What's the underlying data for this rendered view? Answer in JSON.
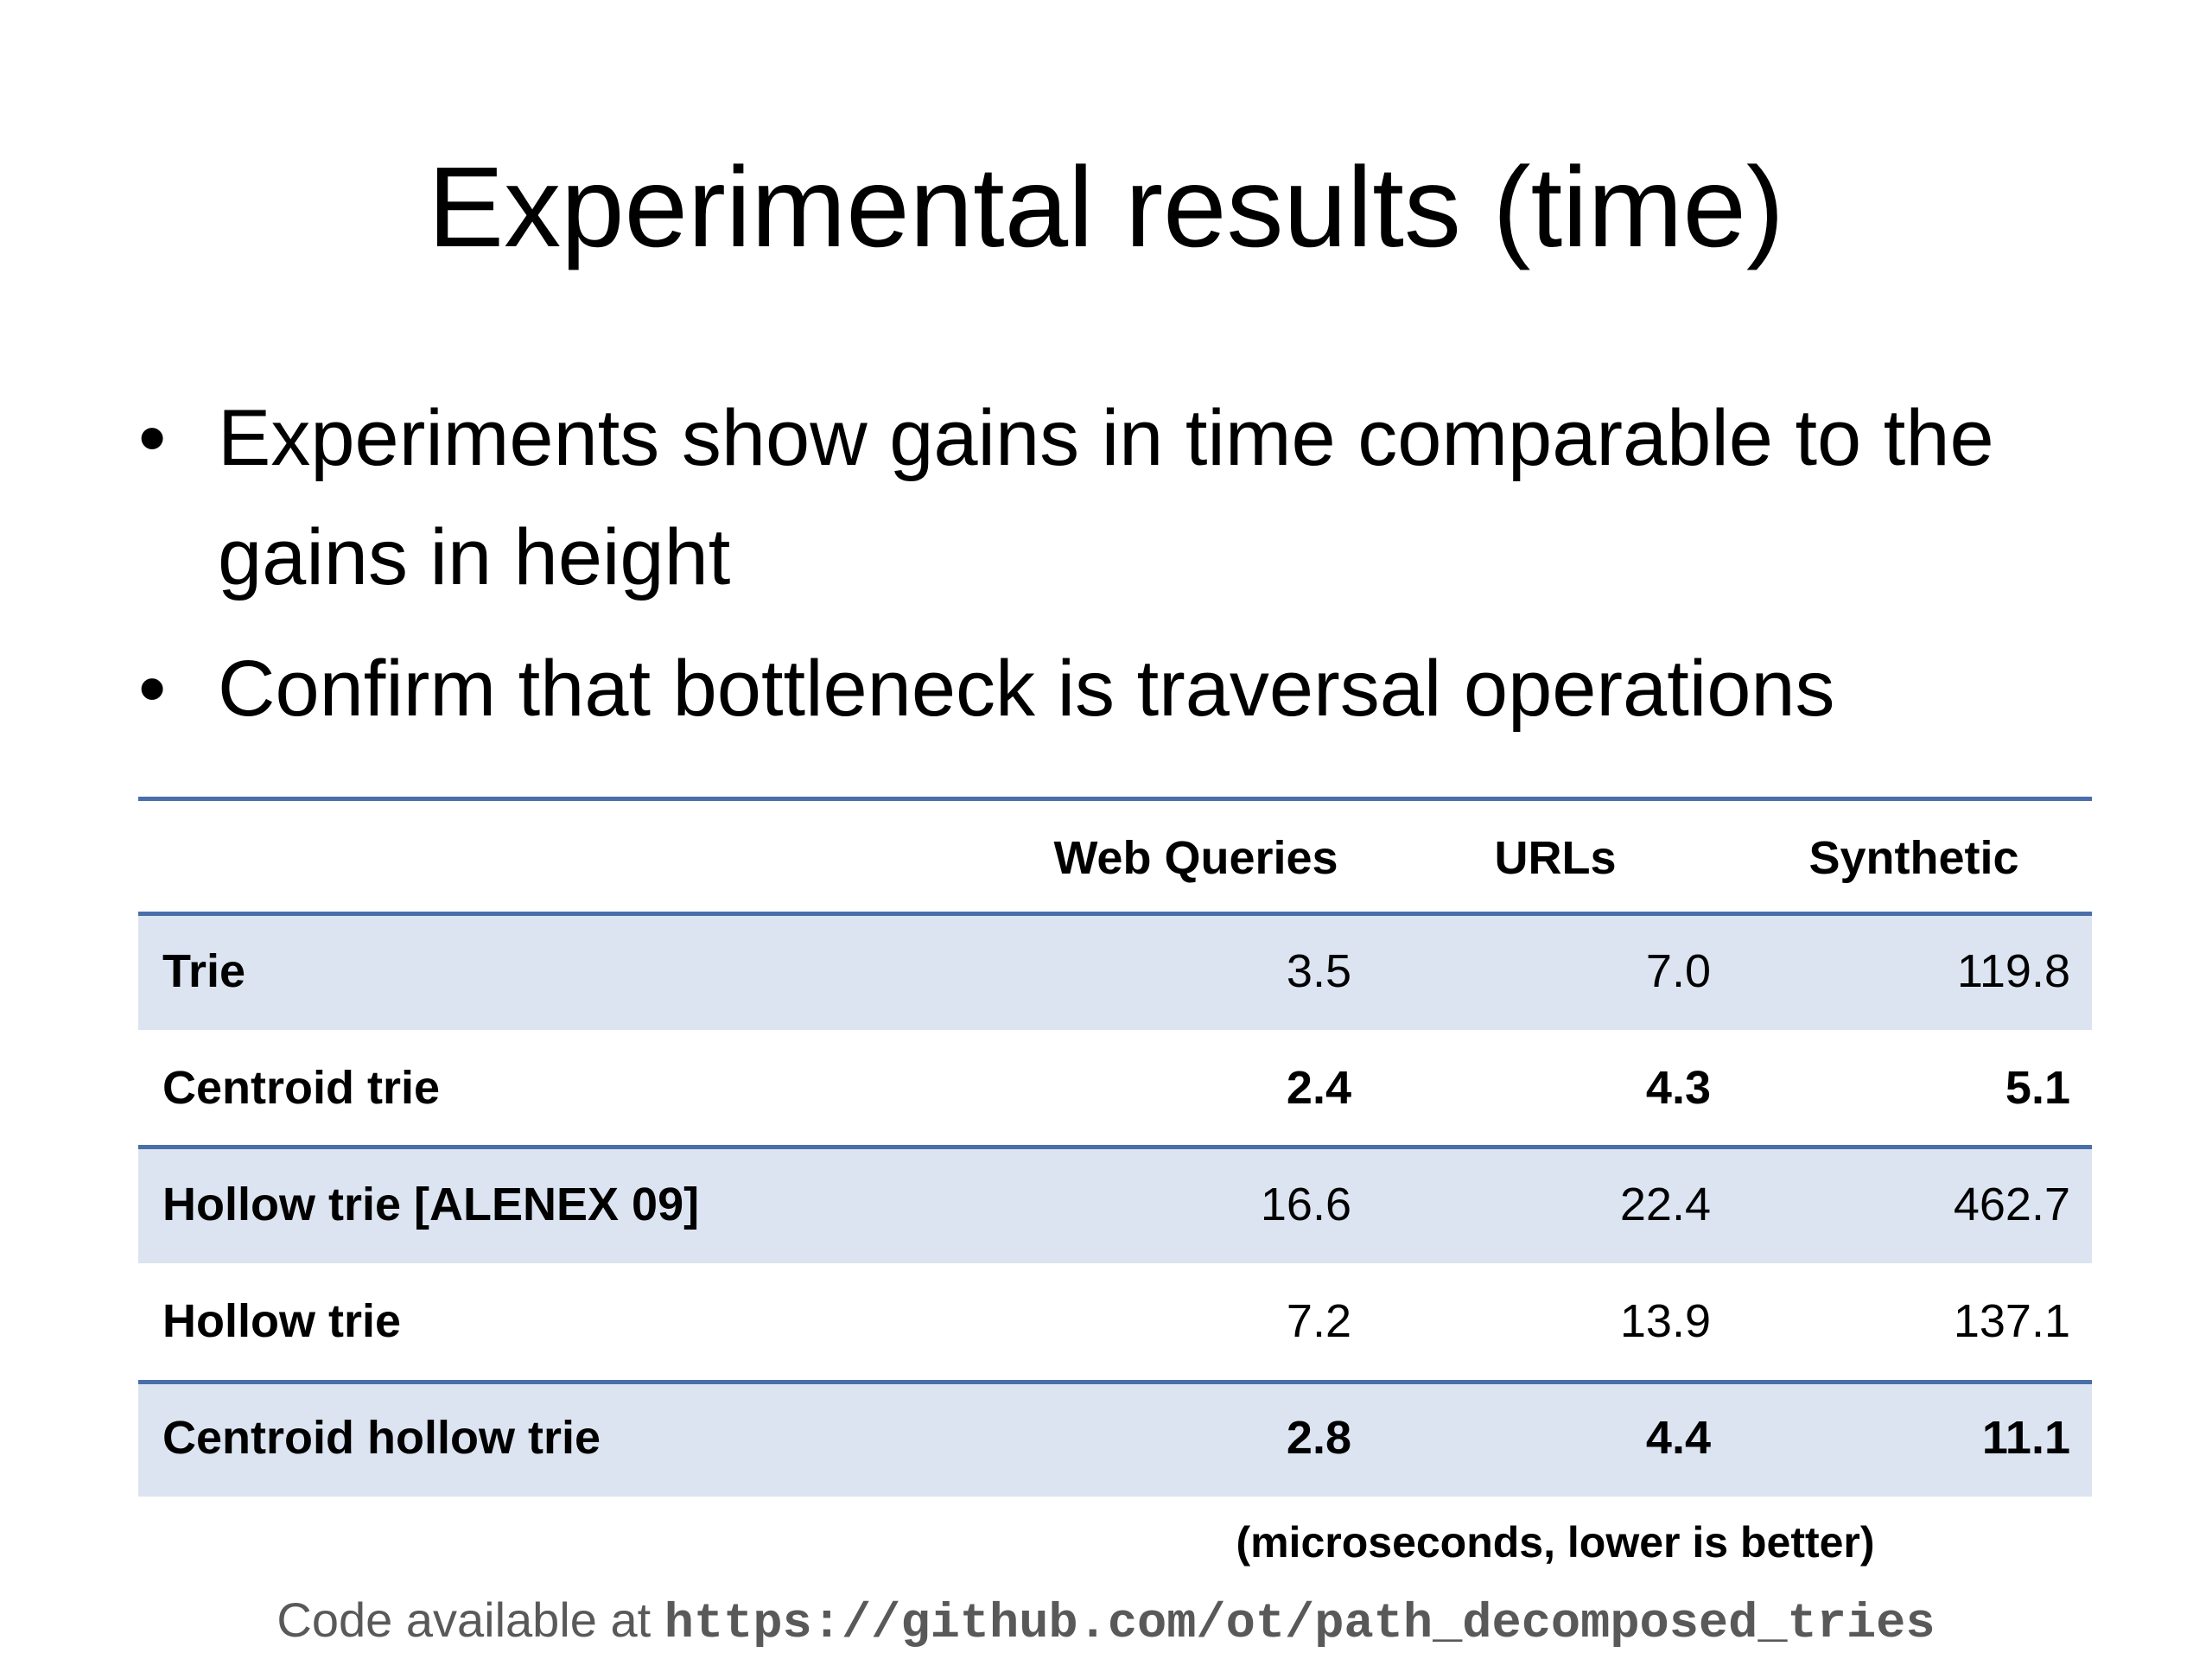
{
  "title": "Experimental results (time)",
  "bullets": [
    "Experiments show gains in time comparable to the gains in height",
    "Confirm that bottleneck is traversal operations"
  ],
  "table": {
    "columns": [
      "Web Queries",
      "URLs",
      "Synthetic"
    ],
    "rows": [
      {
        "label": "Trie",
        "values": [
          "3.5",
          "7.0",
          "119.8"
        ],
        "bold": false
      },
      {
        "label": "Centroid trie",
        "values": [
          "2.4",
          "4.3",
          "5.1"
        ],
        "bold": true
      },
      {
        "label": "Hollow trie [ALENEX 09]",
        "values": [
          "16.6",
          "22.4",
          "462.7"
        ],
        "bold": false
      },
      {
        "label": "Hollow trie",
        "values": [
          "7.2",
          "13.9",
          "137.1"
        ],
        "bold": false
      },
      {
        "label": "Centroid hollow trie",
        "values": [
          "2.8",
          "4.4",
          "11.1"
        ],
        "bold": true
      }
    ],
    "note": "(microseconds, lower is better)"
  },
  "footer": {
    "text": "Code available at",
    "url": "https://github.com/ot/path_decomposed_tries"
  }
}
